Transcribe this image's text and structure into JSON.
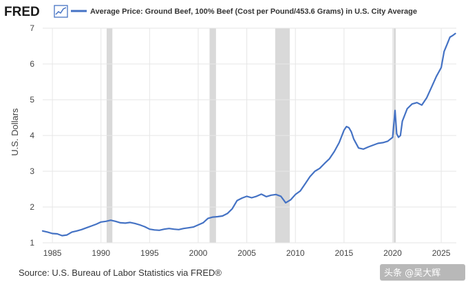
{
  "logo": {
    "text": "FRED"
  },
  "source": "Source: U.S. Bureau of Labor Statistics via FRED®",
  "watermark": "头条 @吴大辉",
  "colors": {
    "line": "#4472c4",
    "recession": "#d9d9d9",
    "grid": "#e6e6e6",
    "logo_icon": "#4472c4"
  },
  "chart_data": {
    "type": "line",
    "title": "Average Price: Ground Beef, 100% Beef (Cost per Pound/453.6 Grams) in U.S. City Average",
    "ylabel": "U.S. Dollars",
    "xlabel": "",
    "xlim": [
      1984.0,
      2026.55
    ],
    "ylim": [
      1,
      7
    ],
    "grid": true,
    "legend_placement": "top-left",
    "x_ticks": [
      1985,
      1990,
      1995,
      2000,
      2005,
      2010,
      2015,
      2020,
      2025
    ],
    "y_ticks": [
      1,
      2,
      3,
      4,
      5,
      6,
      7
    ],
    "recessions": [
      [
        1990.58,
        1991.17
      ],
      [
        2001.17,
        2001.83
      ],
      [
        2007.92,
        2009.42
      ],
      [
        2020.08,
        2020.33
      ]
    ],
    "series": [
      {
        "name": "Average Price: Ground Beef, 100% Beef (Cost per Pound/453.6 Grams) in U.S. City Average",
        "x": [
          1984.0,
          1984.5,
          1985.0,
          1985.5,
          1986.0,
          1986.5,
          1987.0,
          1987.5,
          1988.0,
          1988.5,
          1989.0,
          1989.5,
          1990.0,
          1990.5,
          1991.0,
          1991.5,
          1992.0,
          1992.5,
          1993.0,
          1993.5,
          1994.0,
          1994.5,
          1995.0,
          1995.5,
          1996.0,
          1996.5,
          1997.0,
          1997.5,
          1998.0,
          1998.5,
          1999.0,
          1999.5,
          2000.0,
          2000.5,
          2001.0,
          2001.5,
          2002.0,
          2002.5,
          2003.0,
          2003.5,
          2004.0,
          2004.5,
          2005.0,
          2005.5,
          2006.0,
          2006.5,
          2007.0,
          2007.5,
          2008.0,
          2008.5,
          2009.0,
          2009.5,
          2010.0,
          2010.5,
          2011.0,
          2011.5,
          2012.0,
          2012.5,
          2013.0,
          2013.5,
          2014.0,
          2014.5,
          2015.0,
          2015.25,
          2015.5,
          2015.75,
          2016.0,
          2016.5,
          2017.0,
          2017.5,
          2018.0,
          2018.5,
          2019.0,
          2019.5,
          2020.0,
          2020.25,
          2020.42,
          2020.6,
          2020.8,
          2021.0,
          2021.5,
          2022.0,
          2022.5,
          2023.0,
          2023.5,
          2024.0,
          2024.5,
          2025.0,
          2025.3,
          2025.6,
          2025.9,
          2026.2,
          2026.45
        ],
        "values": [
          1.33,
          1.3,
          1.26,
          1.25,
          1.2,
          1.22,
          1.3,
          1.33,
          1.37,
          1.42,
          1.47,
          1.52,
          1.58,
          1.6,
          1.63,
          1.6,
          1.56,
          1.55,
          1.57,
          1.54,
          1.5,
          1.45,
          1.38,
          1.36,
          1.35,
          1.38,
          1.4,
          1.38,
          1.37,
          1.4,
          1.42,
          1.44,
          1.5,
          1.56,
          1.68,
          1.72,
          1.73,
          1.75,
          1.82,
          1.95,
          2.18,
          2.25,
          2.3,
          2.26,
          2.3,
          2.36,
          2.29,
          2.33,
          2.35,
          2.3,
          2.12,
          2.2,
          2.35,
          2.45,
          2.65,
          2.85,
          3.0,
          3.08,
          3.22,
          3.35,
          3.55,
          3.8,
          4.15,
          4.25,
          4.22,
          4.1,
          3.9,
          3.65,
          3.62,
          3.68,
          3.73,
          3.78,
          3.8,
          3.84,
          3.95,
          4.7,
          4.05,
          3.95,
          4.0,
          4.4,
          4.75,
          4.88,
          4.92,
          4.85,
          5.05,
          5.35,
          5.65,
          5.9,
          6.35,
          6.55,
          6.75,
          6.8,
          6.85
        ]
      }
    ]
  }
}
